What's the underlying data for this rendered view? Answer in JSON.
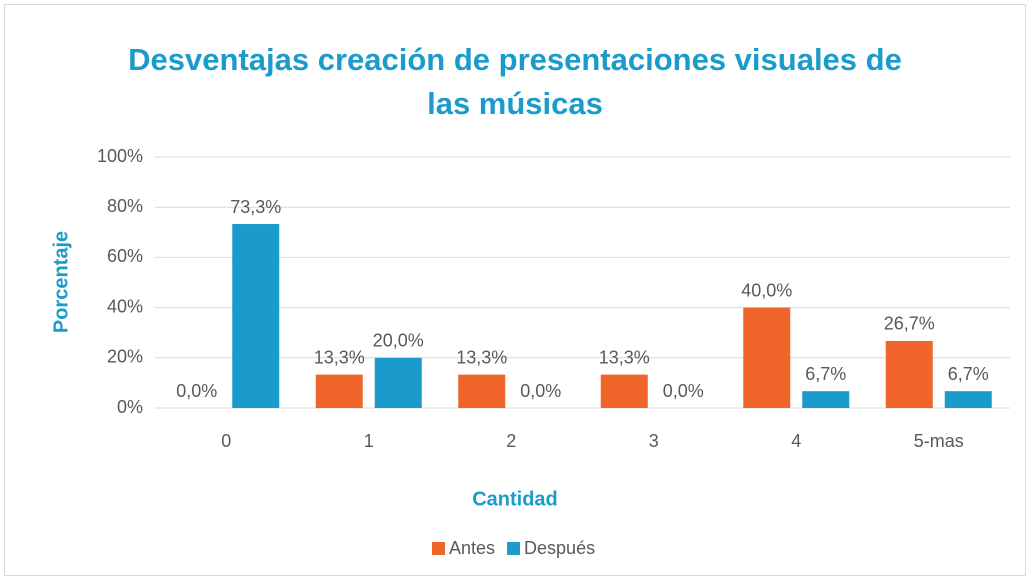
{
  "chart_data": {
    "type": "bar",
    "title": "Desventajas creación de presentaciones visuales de las músicas",
    "x_label": "Cantidad",
    "y_label": "Porcentaje",
    "categories": [
      "0",
      "1",
      "2",
      "3",
      "4",
      "5-mas"
    ],
    "series": [
      {
        "name": "Antes",
        "color": "#f0652a",
        "values": [
          0,
          13.3,
          13.3,
          13.3,
          40,
          26.7
        ],
        "value_labels": [
          "0,0%",
          "13,3%",
          "13,3%",
          "13,3%",
          "40,0%",
          "26,7%"
        ]
      },
      {
        "name": "Después",
        "color": "#1a9bcc",
        "values": [
          73.3,
          20,
          0,
          0,
          6.7,
          6.7
        ],
        "value_labels": [
          "73,3%",
          "20,0%",
          "0,0%",
          "0,0%",
          "6,7%",
          "6,7%"
        ]
      }
    ],
    "ylim": [
      0,
      100
    ],
    "yticks": [
      {
        "value": 0,
        "label": "0%"
      },
      {
        "value": 20,
        "label": "20%"
      },
      {
        "value": 40,
        "label": "40%"
      },
      {
        "value": 60,
        "label": "60%"
      },
      {
        "value": 80,
        "label": "80%"
      },
      {
        "value": 100,
        "label": "100%"
      }
    ],
    "grid": true,
    "legend": "bottom"
  }
}
